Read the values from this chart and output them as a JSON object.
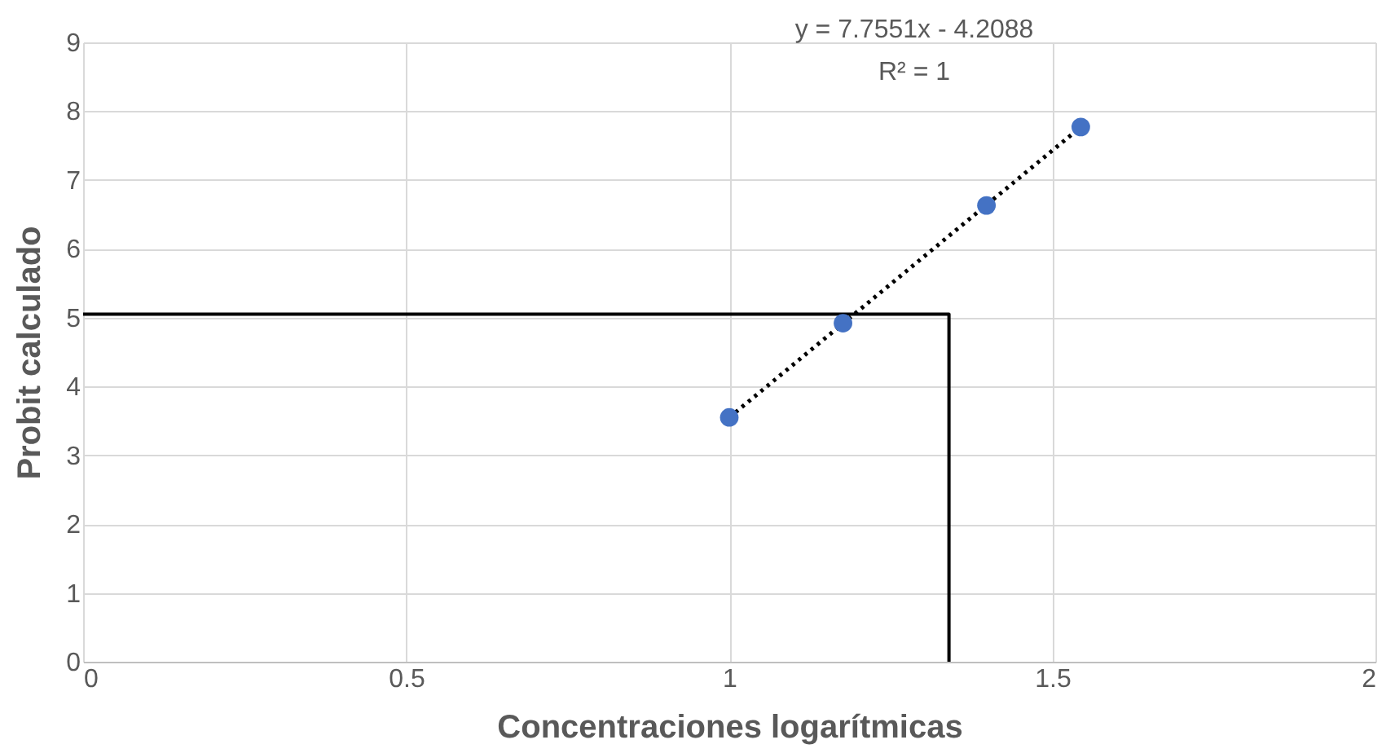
{
  "chart_data": {
    "type": "scatter",
    "xlabel": "Concentraciones logarítmicas",
    "ylabel": "Probit calculado",
    "xlim": [
      0,
      2
    ],
    "xticks": [
      0,
      0.5,
      1,
      1.5,
      2
    ],
    "ylim": [
      0,
      9
    ],
    "yticks": [
      0,
      1,
      2,
      3,
      4,
      5,
      6,
      7,
      8,
      9
    ],
    "grid": true,
    "annotations": [
      "y = 7.7551x - 4.2088",
      "R² = 1"
    ],
    "series": [
      {
        "color": "#4472c4",
        "marker": "circle",
        "x": [
          1.0,
          1.176,
          1.398,
          1.544
        ],
        "values": [
          3.55,
          4.92,
          6.63,
          7.77
        ]
      },
      {
        "type": "line",
        "color": "#000000",
        "line_style": "dotted",
        "marker": "none",
        "x": [
          1.0,
          1.544
        ],
        "values": [
          3.55,
          7.77
        ]
      },
      {
        "type": "line",
        "color": "#000000",
        "line_style": "solid",
        "marker": "none",
        "x": [
          0,
          1.34,
          1.34
        ],
        "values": [
          5.05,
          5.05,
          0
        ]
      }
    ]
  }
}
